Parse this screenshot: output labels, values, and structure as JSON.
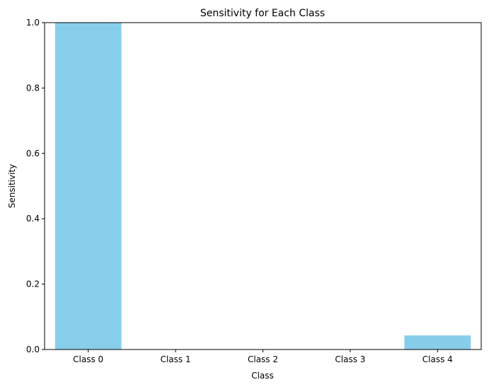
{
  "chart_data": {
    "type": "bar",
    "title": "Sensitivity for Each Class",
    "xlabel": "Class",
    "ylabel": "Sensitivity",
    "categories": [
      "Class 0",
      "Class 1",
      "Class 2",
      "Class 3",
      "Class 4"
    ],
    "values": [
      1.0,
      0.0,
      0.0,
      0.0,
      0.043
    ],
    "ylim": [
      0,
      1.0
    ],
    "yticks": [
      "0.0",
      "0.2",
      "0.4",
      "0.6",
      "0.8",
      "1.0"
    ],
    "bar_color": "#87ceeb",
    "grid": false,
    "legend": false
  }
}
